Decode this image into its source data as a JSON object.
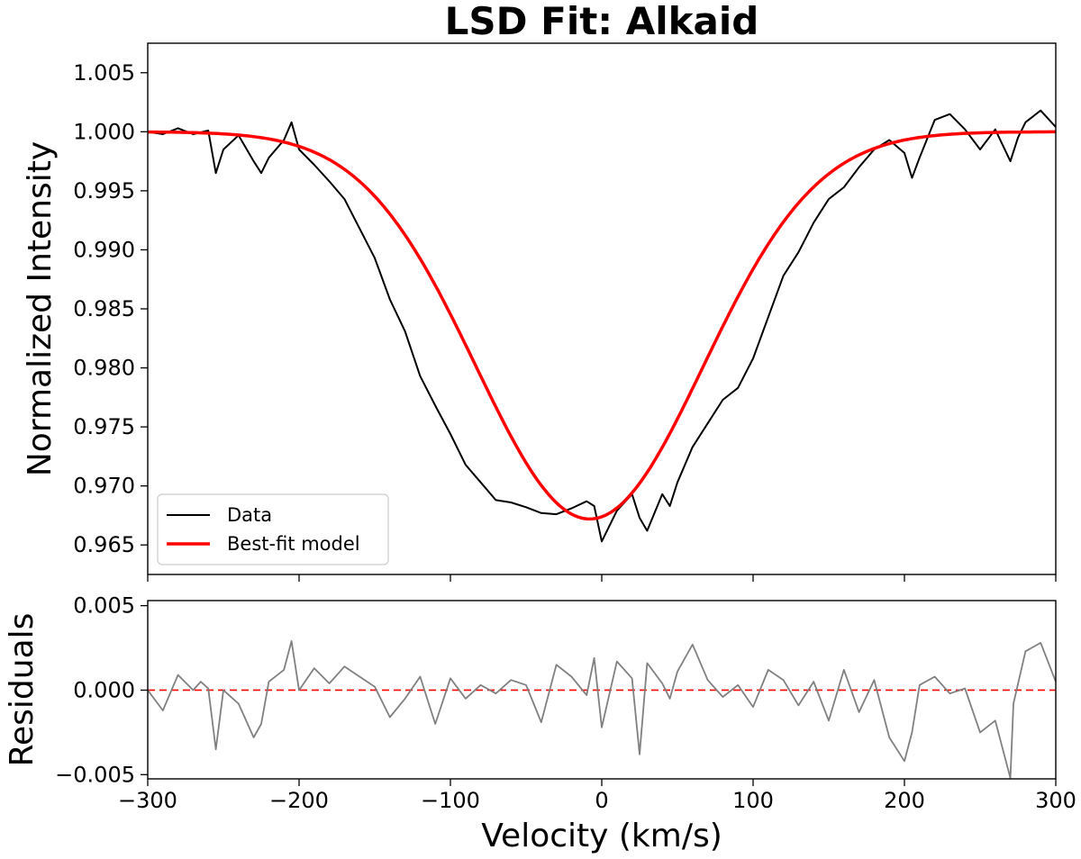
{
  "chart_data": [
    {
      "type": "line",
      "title": "LSD Fit: Alkaid",
      "xlabel": "",
      "ylabel": "Normalized Intensity",
      "xlim": [
        -300,
        300
      ],
      "ylim": [
        0.9625,
        1.0075
      ],
      "xticks": [
        -300,
        -200,
        -100,
        0,
        100,
        200,
        300
      ],
      "yticks": [
        "0.965",
        "0.970",
        "0.975",
        "0.980",
        "0.985",
        "0.990",
        "0.995",
        "1.000",
        "1.005"
      ],
      "legend_position": "lower-left",
      "series": [
        {
          "name": "Data",
          "color": "#000000",
          "x": [
            -300,
            -290,
            -280,
            -270,
            -260,
            -255,
            -250,
            -240,
            -230,
            -225,
            -220,
            -210,
            -205,
            -200,
            -190,
            -180,
            -170,
            -160,
            -150,
            -140,
            -130,
            -120,
            -110,
            -100,
            -90,
            -80,
            -70,
            -60,
            -50,
            -40,
            -30,
            -20,
            -10,
            -5,
            0,
            10,
            20,
            25,
            30,
            40,
            45,
            50,
            60,
            70,
            80,
            90,
            100,
            110,
            120,
            130,
            140,
            150,
            160,
            170,
            180,
            190,
            200,
            205,
            210,
            220,
            230,
            240,
            250,
            260,
            270,
            275,
            280,
            290,
            300
          ],
          "y": [
            1.0,
            0.9998,
            1.0003,
            0.9998,
            1.0001,
            0.9965,
            0.9985,
            0.9997,
            0.9975,
            0.9965,
            0.9978,
            0.9993,
            1.0008,
            0.9985,
            0.9972,
            0.9958,
            0.9943,
            0.9918,
            0.9893,
            0.9858,
            0.9831,
            0.9793,
            0.9768,
            0.9744,
            0.9718,
            0.9703,
            0.9688,
            0.9686,
            0.9682,
            0.9677,
            0.9676,
            0.9681,
            0.9687,
            0.9683,
            0.9653,
            0.9679,
            0.9693,
            0.9673,
            0.9662,
            0.9693,
            0.9683,
            0.9703,
            0.9733,
            0.9753,
            0.9773,
            0.9783,
            0.9808,
            0.9843,
            0.9878,
            0.9898,
            0.9923,
            0.9943,
            0.9953,
            0.997,
            0.9985,
            0.9993,
            0.9982,
            0.9961,
            0.9978,
            1.001,
            1.0015,
            1.0002,
            0.9985,
            1.0002,
            0.9975,
            0.9995,
            1.0008,
            1.0018,
            1.0004
          ]
        },
        {
          "name": "Best-fit model",
          "color": "#ff0000",
          "model": {
            "continuum": 1.0,
            "depth": 0.0328,
            "center": -8,
            "sigma": 75
          }
        }
      ]
    },
    {
      "type": "line",
      "xlabel": "Velocity (km/s)",
      "ylabel": "Residuals",
      "xlim": [
        -300,
        300
      ],
      "ylim": [
        -0.00525,
        0.0053
      ],
      "xticks": [
        "−300",
        "−200",
        "−100",
        "0",
        "100",
        "200",
        "300"
      ],
      "yticks": [
        "−0.005",
        "0.000",
        "0.005"
      ],
      "reference_line": {
        "y": 0.0,
        "color": "#ff0000",
        "style": "dashed"
      },
      "series": [
        {
          "color": "#808080",
          "x": [
            -300,
            -290,
            -280,
            -270,
            -265,
            -260,
            -255,
            -250,
            -240,
            -230,
            -225,
            -220,
            -210,
            -205,
            -200,
            -190,
            -180,
            -170,
            -160,
            -150,
            -140,
            -130,
            -120,
            -110,
            -100,
            -90,
            -80,
            -70,
            -60,
            -50,
            -40,
            -30,
            -20,
            -10,
            -5,
            0,
            10,
            20,
            25,
            30,
            40,
            45,
            50,
            60,
            70,
            80,
            90,
            100,
            110,
            120,
            130,
            140,
            150,
            160,
            170,
            180,
            190,
            200,
            205,
            210,
            220,
            230,
            240,
            250,
            260,
            270,
            272,
            280,
            290,
            300
          ],
          "y": [
            0.0,
            -0.0012,
            0.0009,
            0.0,
            0.0005,
            0.0001,
            -0.0035,
            0.0,
            -0.0008,
            -0.0028,
            -0.002,
            0.0005,
            0.0012,
            0.0029,
            0.0,
            0.0013,
            0.0004,
            0.0014,
            0.0008,
            0.0002,
            -0.0016,
            -0.0005,
            0.0008,
            -0.002,
            0.0007,
            -0.0005,
            0.0003,
            -0.0002,
            0.0006,
            0.0003,
            -0.0019,
            0.0015,
            0.0008,
            -0.0003,
            0.0019,
            -0.0022,
            0.0017,
            0.0007,
            -0.0038,
            0.0016,
            0.0004,
            -0.0005,
            0.0011,
            0.0027,
            0.0006,
            -0.0004,
            0.0003,
            -0.001,
            0.0012,
            0.0006,
            -0.0009,
            0.0005,
            -0.0018,
            0.0012,
            -0.0013,
            0.0006,
            -0.0028,
            -0.0042,
            -0.0025,
            0.0003,
            0.0008,
            -0.0002,
            0.0001,
            -0.0025,
            -0.0018,
            -0.0052,
            -0.0008,
            0.0023,
            0.0028,
            0.0005
          ]
        }
      ]
    }
  ],
  "legend": {
    "data_label": "Data",
    "model_label": "Best-fit model"
  }
}
